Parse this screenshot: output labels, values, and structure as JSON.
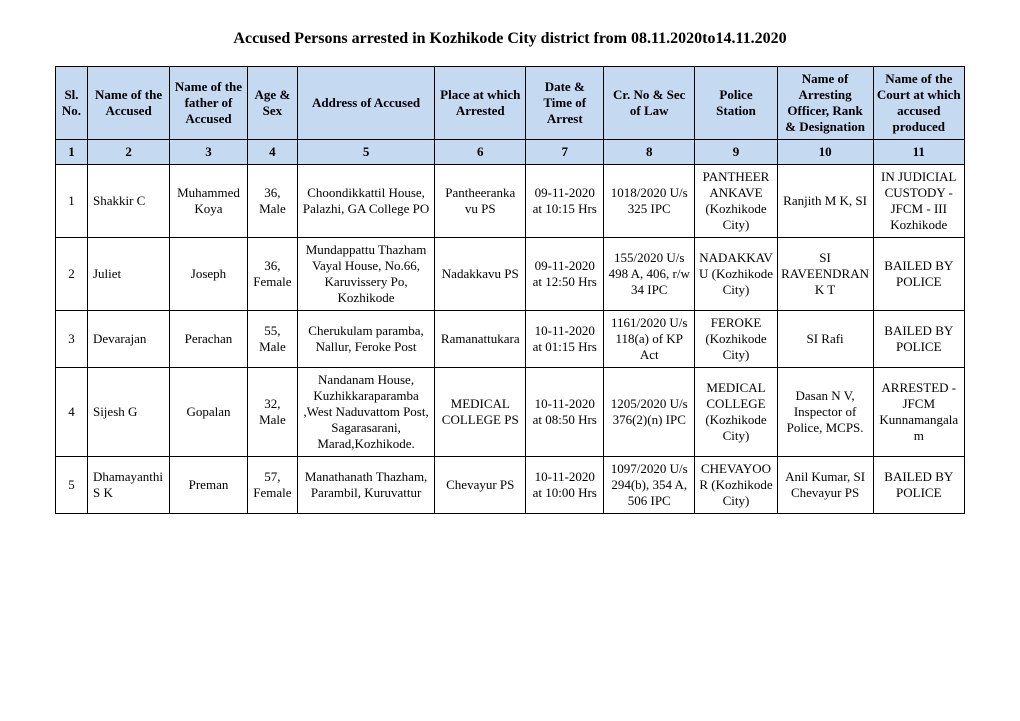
{
  "title": "Accused Persons arrested in  Kozhikode City  district from   08.11.2020to14.11.2020",
  "headers": {
    "c1": "Sl. No.",
    "c2": "Name of the Accused",
    "c3": "Name of the father of Accused",
    "c4": "Age & Sex",
    "c5": "Address of Accused",
    "c6": "Place at which Arrested",
    "c7": "Date & Time of Arrest",
    "c8": "Cr. No & Sec of Law",
    "c9": "Police Station",
    "c10": "Name of Arresting Officer, Rank & Designation",
    "c11": "Name of the Court at which accused produced"
  },
  "numrow": {
    "n1": "1",
    "n2": "2",
    "n3": "3",
    "n4": "4",
    "n5": "5",
    "n6": "6",
    "n7": "7",
    "n8": "8",
    "n9": "9",
    "n10": "10",
    "n11": "11"
  },
  "rows": [
    {
      "sl": "1",
      "name": "Shakkir C",
      "father": "Muhammed Koya",
      "age": "36, Male",
      "addr": "Choondikkattil House, Palazhi, GA College PO",
      "place": "Pantheeranka vu PS",
      "datetime": "09-11-2020 at 10:15 Hrs",
      "crno": "1018/2020 U/s 325 IPC",
      "ps": "PANTHEERANKAVE (Kozhikode City)",
      "officer": "Ranjith M K, SI",
      "court": "IN JUDICIAL CUSTODY - JFCM - III Kozhikode"
    },
    {
      "sl": "2",
      "name": "Juliet",
      "father": "Joseph",
      "age": "36, Female",
      "addr": "Mundappattu Thazham Vayal House, No.66, Karuvissery Po, Kozhikode",
      "place": "Nadakkavu PS",
      "datetime": "09-11-2020 at 12:50 Hrs",
      "crno": "155/2020 U/s 498 A, 406, r/w 34 IPC",
      "ps": "NADAKKAVU (Kozhikode City)",
      "officer": "SI RAVEENDRAN K T",
      "court": "BAILED BY POLICE"
    },
    {
      "sl": "3",
      "name": "Devarajan",
      "father": "Perachan",
      "age": "55, Male",
      "addr": "Cherukulam paramba, Nallur, Feroke Post",
      "place": "Ramanattukara",
      "datetime": "10-11-2020 at 01:15 Hrs",
      "crno": "1161/2020 U/s 118(a) of KP Act",
      "ps": "FEROKE (Kozhikode City)",
      "officer": "SI Rafi",
      "court": "BAILED BY POLICE"
    },
    {
      "sl": "4",
      "name": "Sijesh G",
      "father": "Gopalan",
      "age": "32, Male",
      "addr": "Nandanam House, Kuzhikkaraparamba ,West Naduvattom Post, Sagarasarani, Marad,Kozhikode.",
      "place": "MEDICAL COLLEGE PS",
      "datetime": "10-11-2020 at 08:50 Hrs",
      "crno": "1205/2020 U/s 376(2)(n) IPC",
      "ps": "MEDICAL COLLEGE (Kozhikode City)",
      "officer": "Dasan N V, Inspector of Police, MCPS.",
      "court": "ARRESTED - JFCM Kunnamangalam"
    },
    {
      "sl": "5",
      "name": "Dhamayanthi S K",
      "father": "Preman",
      "age": "57, Female",
      "addr": "Manathanath Thazham, Parambil, Kuruvattur",
      "place": "Chevayur PS",
      "datetime": "10-11-2020 at 10:00 Hrs",
      "crno": "1097/2020 U/s 294(b), 354 A, 506 IPC",
      "ps": "CHEVAYOOR (Kozhikode City)",
      "officer": "Anil Kumar, SI Chevayur PS",
      "court": "BAILED BY POLICE"
    }
  ]
}
